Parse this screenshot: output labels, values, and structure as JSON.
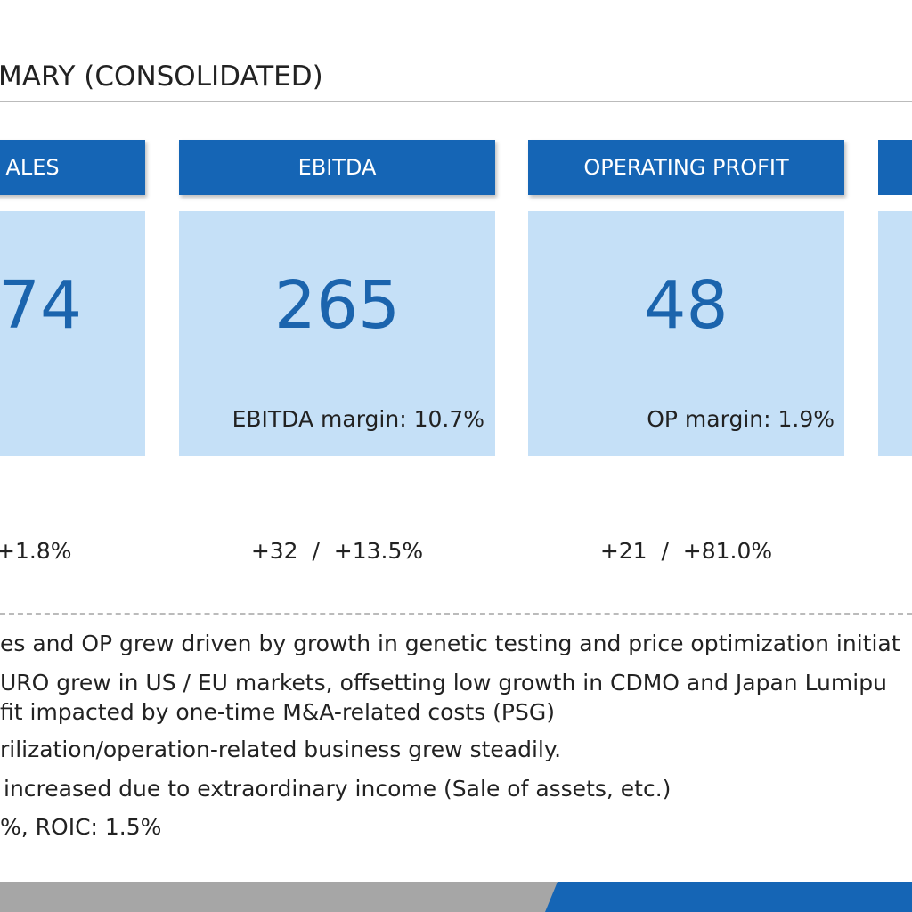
{
  "header": {
    "title": "MARY (CONSOLIDATED)"
  },
  "cards": [
    {
      "header": "ALES",
      "value": "74",
      "change": "+1.8%"
    },
    {
      "header": "EBITDA",
      "value": "265",
      "margin": "EBITDA margin: 10.7%",
      "change": "+32  /  +13.5%"
    },
    {
      "header": "OPERATING PROFIT",
      "value": "48",
      "margin": "OP margin: 1.9%",
      "change": "+21  /  +81.0%"
    }
  ],
  "bullets": [
    "es and OP grew driven by growth in genetic testing and price optimization initiat",
    "URO grew in US / EU markets, offsetting low growth in CDMO and Japan Lumipu",
    "fit impacted by one-time M&A-related costs (PSG)",
    "rilization/operation-related business grew steadily.",
    "increased due to extraordinary income (Sale of assets, etc.)",
    "%, ROIC: 1.5%"
  ]
}
